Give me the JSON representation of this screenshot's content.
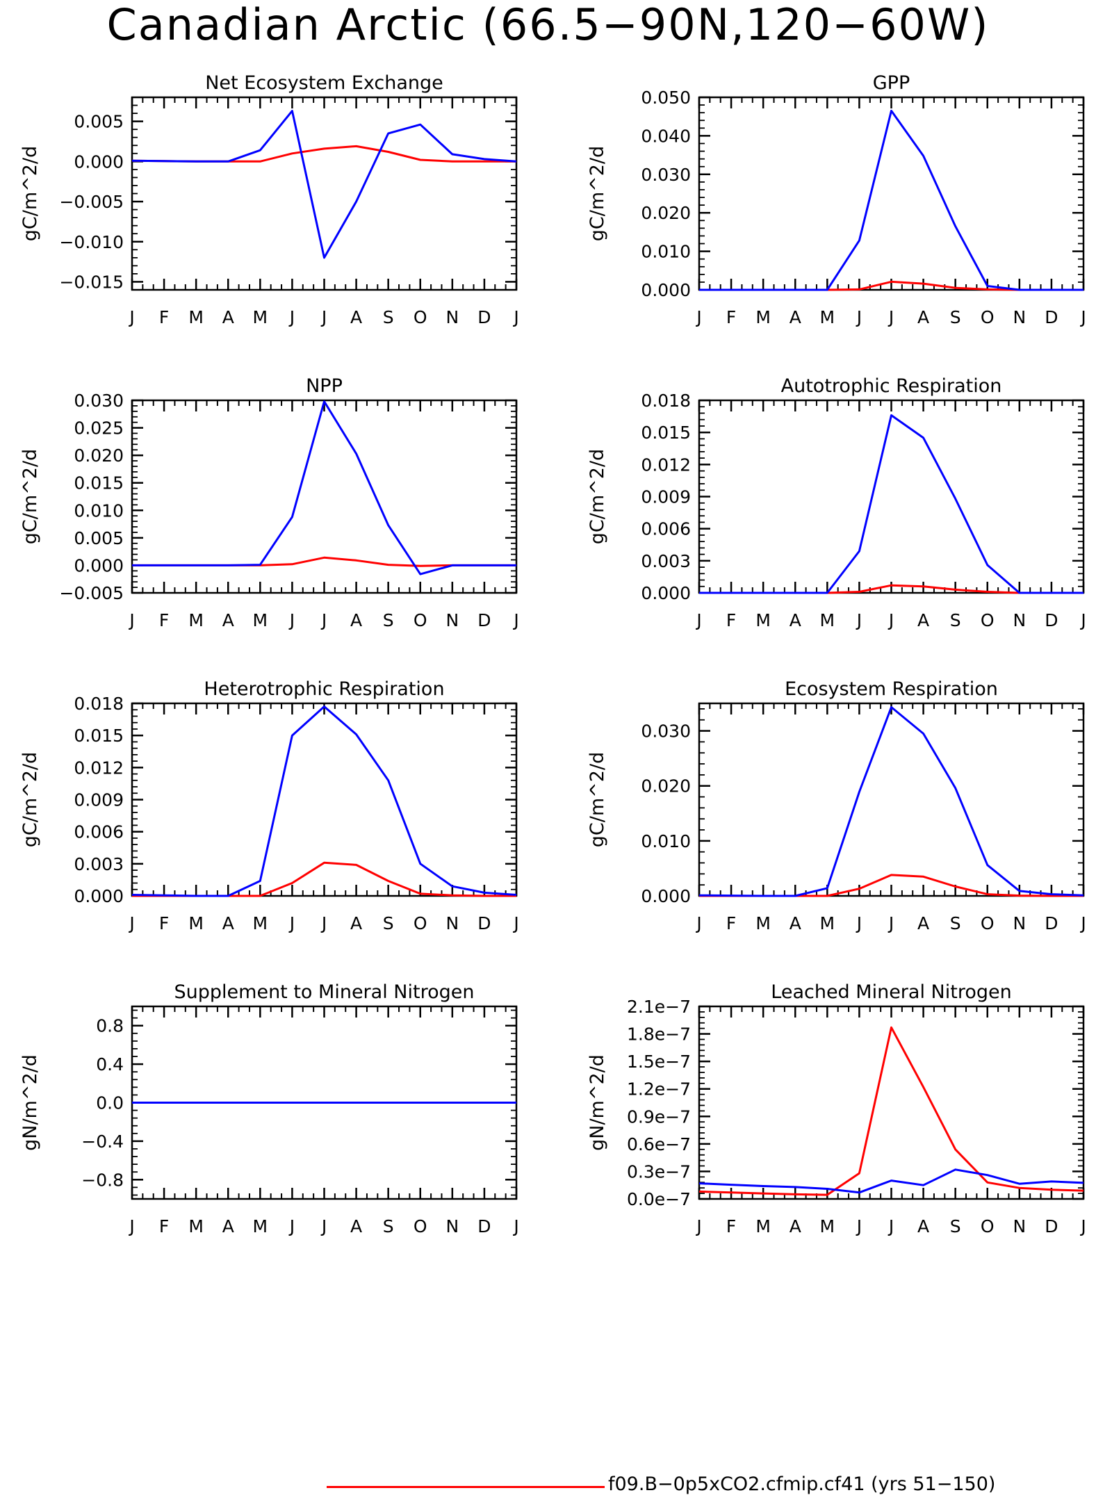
{
  "title": "Canadian Arctic (66.5−90N,120−60W)",
  "months": [
    "J",
    "F",
    "M",
    "A",
    "M",
    "J",
    "J",
    "A",
    "S",
    "O",
    "N",
    "D",
    "J"
  ],
  "series_colors": {
    "red": "#ff0000",
    "blue": "#0000ff"
  },
  "legend": {
    "red_label": "f09.B−0p5xCO2.cfmip.cf41 (yrs 51−150)"
  },
  "chart_data": [
    {
      "type": "line",
      "title": "Net Ecosystem Exchange",
      "ylabel": "gC/m^2/d",
      "ylim": [
        -0.016,
        0.008
      ],
      "yticks": [
        0.005,
        0.0,
        -0.005,
        -0.01,
        -0.015
      ],
      "ytick_labels": [
        "0.005",
        "0.000",
        "−0.005",
        "−0.010",
        "−0.015"
      ],
      "series": [
        {
          "color": "red",
          "values": [
            0.0001,
            5e-05,
            0.0,
            0.0,
            0.0,
            0.001,
            0.0016,
            0.0019,
            0.0012,
            0.0002,
            0.0,
            0.0,
            0.0
          ]
        },
        {
          "color": "blue",
          "values": [
            0.0001,
            5e-05,
            0.0,
            0.0,
            0.0014,
            0.0063,
            -0.012,
            -0.005,
            0.0035,
            0.0046,
            0.0009,
            0.0003,
            0.0
          ]
        }
      ]
    },
    {
      "type": "line",
      "title": "GPP",
      "ylabel": "gC/m^2/d",
      "ylim": [
        0.0,
        0.05
      ],
      "yticks": [
        0.0,
        0.01,
        0.02,
        0.03,
        0.04,
        0.05
      ],
      "ytick_labels": [
        "0.000",
        "0.010",
        "0.020",
        "0.030",
        "0.040",
        "0.050"
      ],
      "series": [
        {
          "color": "red",
          "values": [
            0,
            0,
            0,
            0,
            0,
            0.0001,
            0.0021,
            0.0016,
            0.0005,
            0.0001,
            0,
            0,
            0
          ]
        },
        {
          "color": "blue",
          "values": [
            0,
            0,
            0,
            0,
            0,
            0.0128,
            0.0465,
            0.0348,
            0.0165,
            0.001,
            0,
            0,
            0
          ]
        }
      ]
    },
    {
      "type": "line",
      "title": "NPP",
      "ylabel": "gC/m^2/d",
      "ylim": [
        -0.005,
        0.03
      ],
      "yticks": [
        0.03,
        0.025,
        0.02,
        0.015,
        0.01,
        0.005,
        0.0,
        -0.005
      ],
      "ytick_labels": [
        "0.030",
        "0.025",
        "0.020",
        "0.015",
        "0.010",
        "0.005",
        "0.000",
        "−0.005"
      ],
      "series": [
        {
          "color": "red",
          "values": [
            0,
            0,
            0,
            0,
            0,
            0.0002,
            0.0014,
            0.0009,
            0.0001,
            -0.0001,
            0,
            0,
            0
          ]
        },
        {
          "color": "blue",
          "values": [
            0,
            0,
            0,
            0,
            0.0001,
            0.0088,
            0.0298,
            0.0203,
            0.0073,
            -0.0016,
            0,
            0,
            0
          ]
        }
      ]
    },
    {
      "type": "line",
      "title": "Autotrophic Respiration",
      "ylabel": "gC/m^2/d",
      "ylim": [
        0.0,
        0.018
      ],
      "yticks": [
        0.018,
        0.015,
        0.012,
        0.009,
        0.006,
        0.003,
        0.0
      ],
      "ytick_labels": [
        "0.018",
        "0.015",
        "0.012",
        "0.009",
        "0.006",
        "0.003",
        "0.000"
      ],
      "series": [
        {
          "color": "red",
          "values": [
            0,
            0,
            0,
            0,
            0,
            0.0001,
            0.0007,
            0.0006,
            0.0003,
            0.0001,
            0,
            0,
            0
          ]
        },
        {
          "color": "blue",
          "values": [
            0,
            0,
            0,
            0,
            0,
            0.0039,
            0.0166,
            0.0145,
            0.0088,
            0.0026,
            0,
            0,
            0
          ]
        }
      ]
    },
    {
      "type": "line",
      "title": "Heterotrophic Respiration",
      "ylabel": "gC/m^2/d",
      "ylim": [
        0.0,
        0.018
      ],
      "yticks": [
        0.018,
        0.015,
        0.012,
        0.009,
        0.006,
        0.003,
        0.0
      ],
      "ytick_labels": [
        "0.018",
        "0.015",
        "0.012",
        "0.009",
        "0.006",
        "0.003",
        "0.000"
      ],
      "series": [
        {
          "color": "red",
          "values": [
            0,
            0,
            0,
            0,
            0,
            0.0012,
            0.0031,
            0.0029,
            0.0014,
            0.0002,
            5e-05,
            0,
            0
          ]
        },
        {
          "color": "blue",
          "values": [
            0.0001,
            5e-05,
            0,
            0,
            0.0014,
            0.015,
            0.0177,
            0.0151,
            0.0108,
            0.003,
            0.0009,
            0.0003,
            0.0001
          ]
        }
      ]
    },
    {
      "type": "line",
      "title": "Ecosystem Respiration",
      "ylabel": "gC/m^2/d",
      "ylim": [
        0.0,
        0.035
      ],
      "yticks": [
        0.03,
        0.02,
        0.01,
        0.0
      ],
      "ytick_labels": [
        "0.030",
        "0.020",
        "0.010",
        "0.000"
      ],
      "series": [
        {
          "color": "red",
          "values": [
            0,
            0,
            0,
            0,
            0,
            0.0013,
            0.0038,
            0.0035,
            0.0017,
            0.0003,
            5e-05,
            0,
            0
          ]
        },
        {
          "color": "blue",
          "values": [
            0.0001,
            5e-05,
            0,
            0,
            0.0014,
            0.0189,
            0.0343,
            0.0295,
            0.0196,
            0.0056,
            0.0009,
            0.0003,
            0.0001
          ]
        }
      ]
    },
    {
      "type": "line",
      "title": "Supplement to Mineral Nitrogen",
      "ylabel": "gN/m^2/d",
      "ylim": [
        -1.0,
        1.0
      ],
      "yticks": [
        0.8,
        0.4,
        0.0,
        -0.4,
        -0.8
      ],
      "ytick_labels": [
        "0.8",
        "0.4",
        "0.0",
        "−0.4",
        "−0.8"
      ],
      "series": [
        {
          "color": "red",
          "values": [
            0,
            0,
            0,
            0,
            0,
            0,
            0,
            0,
            0,
            0,
            0,
            0,
            0
          ]
        },
        {
          "color": "blue",
          "values": [
            0,
            0,
            0,
            0,
            0,
            0,
            0,
            0,
            0,
            0,
            0,
            0,
            0
          ]
        }
      ]
    },
    {
      "type": "line",
      "title": "Leached Mineral Nitrogen",
      "ylabel": "gN/m^2/d",
      "ylim": [
        0.0,
        2.1e-07
      ],
      "yticks": [
        2.1e-07,
        1.8e-07,
        1.5e-07,
        1.2e-07,
        9e-08,
        6e-08,
        3e-08,
        0.0
      ],
      "ytick_labels": [
        "2.1e−7",
        "1.8e−7",
        "1.5e−7",
        "1.2e−7",
        "0.9e−7",
        "0.6e−7",
        "0.3e−7",
        "0.0e−7"
      ],
      "series": [
        {
          "color": "red",
          "values": [
            8e-09,
            7e-09,
            6e-09,
            5e-09,
            4.5e-09,
            2.8e-08,
            1.87e-07,
            1.22e-07,
            5.4e-08,
            1.8e-08,
            1.2e-08,
            1e-08,
            9e-09
          ]
        },
        {
          "color": "blue",
          "values": [
            1.7e-08,
            1.55e-08,
            1.4e-08,
            1.3e-08,
            1.1e-08,
            7e-09,
            2e-08,
            1.5e-08,
            3.2e-08,
            2.6e-08,
            1.65e-08,
            1.9e-08,
            1.75e-08
          ]
        }
      ]
    }
  ]
}
